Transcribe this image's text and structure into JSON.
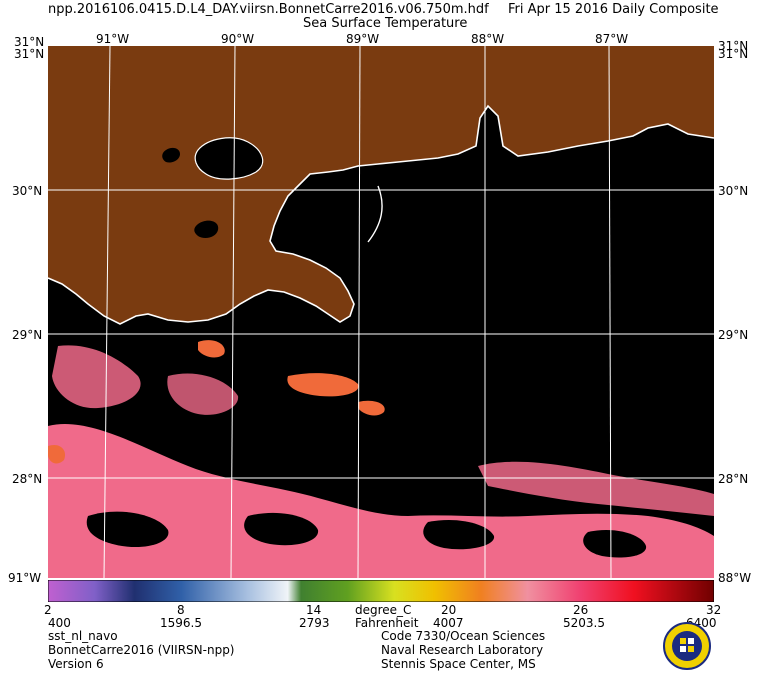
{
  "header": {
    "filename": "npp.2016106.0415.D.L4_DAY.viirsn.BonnetCarre2016.v06.750m.hdf",
    "date": "Fri Apr 15 2016 Daily Composite",
    "product": "Sea Surface Temperature"
  },
  "map": {
    "lon_labels": [
      "91°W",
      "90°W",
      "89°W",
      "88°W",
      "87°W"
    ],
    "lat_labels": [
      "30°N",
      "29°N",
      "28°N"
    ],
    "corner_top_left": "31°N",
    "corner_top_right": "31°N",
    "corner_bottom_left": "91°W",
    "corner_bottom_right": "88°W",
    "colors": {
      "land": "#7a3b10",
      "ocean_no_data": "#000000",
      "grid": "#ffffff",
      "coast": "#ffffff"
    }
  },
  "colorbar": {
    "celsius_ticks": [
      "2",
      "8",
      "14",
      "20",
      "26",
      "32"
    ],
    "fahrenheit_ticks": [
      "400",
      "1596.5",
      "2793",
      "4007",
      "5203.5",
      "6400"
    ],
    "unit_c": "degree_C",
    "unit_f": "Fahrenheit"
  },
  "footer": {
    "left": [
      "sst_nl_navo",
      "BonnetCarre2016 (VIIRSN-npp)",
      "Version 6"
    ],
    "right": [
      "Code 7330/Ocean Sciences",
      "Naval Research Laboratory",
      "Stennis Space Center, MS"
    ]
  }
}
